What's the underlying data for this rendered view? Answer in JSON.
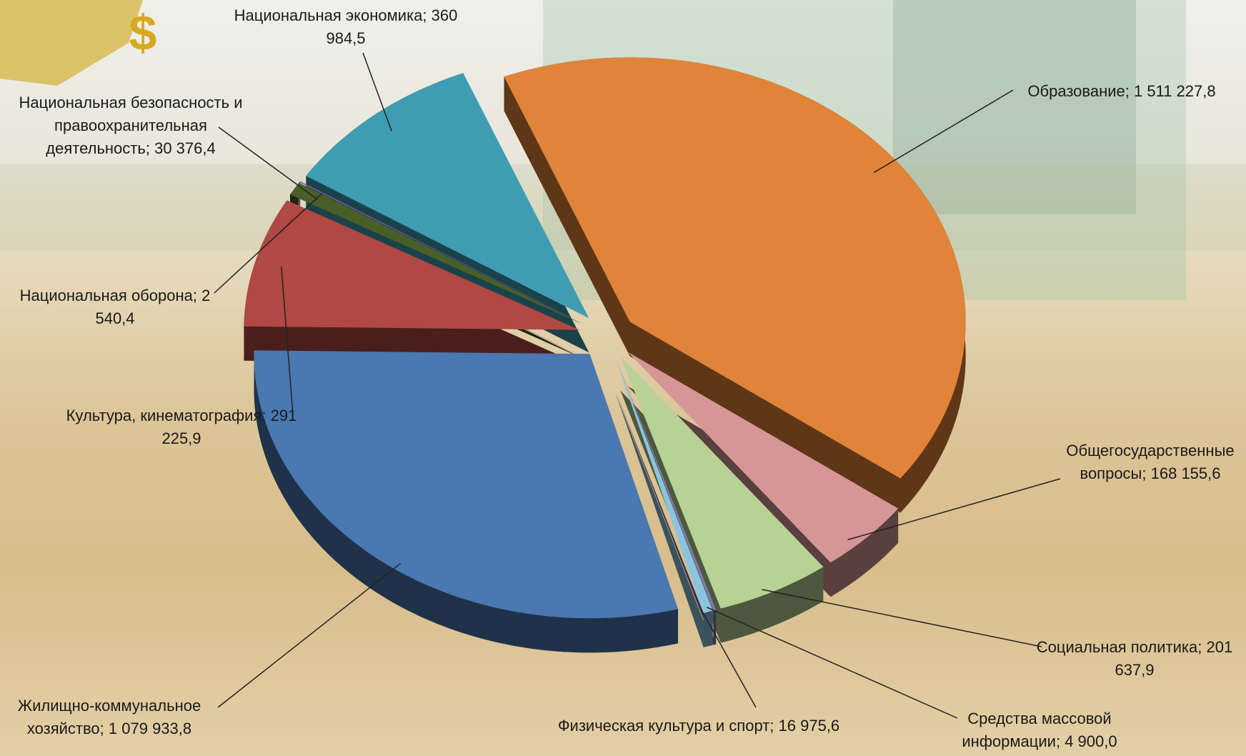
{
  "chart_data": {
    "type": "pie",
    "categories": [
      "Образование",
      "Общегосударственные вопросы",
      "Социальная политика",
      "Средства массовой информации",
      "Физическая культура и спорт",
      "Жилищно-коммунальное хозяйство",
      "Культура, кинематография",
      "Национальная безопасность и правоохранительная деятельность",
      "Национальная оборона",
      "Национальная экономика"
    ],
    "values": [
      1511227.8,
      168155.6,
      201637.9,
      4900.0,
      16975.6,
      1079933.8,
      291225.9,
      30376.4,
      2540.4,
      360984.5
    ],
    "value_labels": [
      "1 511 227,8",
      "168 155,6",
      "201 637,9",
      "4 900,0",
      "16 975,6",
      "1 079 933,8",
      "291 225,9",
      "30 376,4",
      "2 540,4",
      "360 984,5"
    ],
    "colors": [
      "#e0843a",
      "#d69696",
      "#b8d194",
      "#7e7ab0",
      "#8cc4de",
      "#4a78b0",
      "#b04843",
      "#4a5e28",
      "#7c5ea8",
      "#3f9db3"
    ],
    "label_separator": ";"
  }
}
